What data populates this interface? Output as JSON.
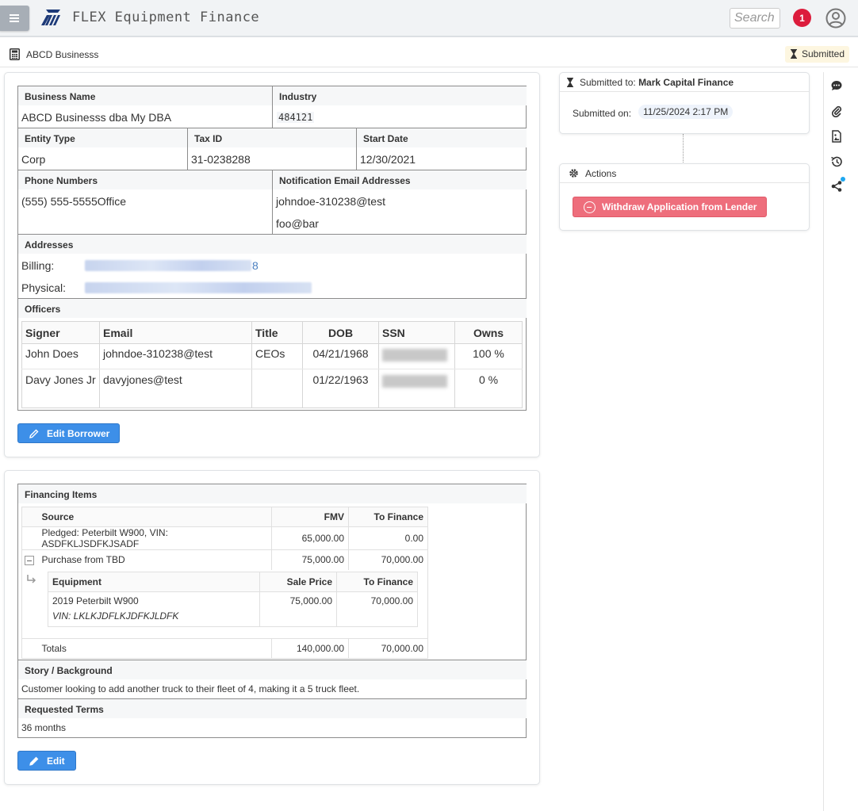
{
  "app": {
    "title": "FLEX Equipment Finance",
    "search_placeholder": "Search",
    "notification_count": "1"
  },
  "subheader": {
    "business_name": "ABCD Businesss",
    "status": "Submitted"
  },
  "borrower": {
    "business_name_label": "Business Name",
    "business_name": "ABCD Businesss dba My DBA",
    "industry_label": "Industry",
    "industry": "484121",
    "entity_type_label": "Entity Type",
    "entity_type": "Corp",
    "tax_id_label": "Tax ID",
    "tax_id": "31-0238288",
    "start_date_label": "Start Date",
    "start_date": "12/30/2021",
    "phone_label": "Phone Numbers",
    "phone": "(555) 555-5555Office",
    "email_label": "Notification Email Addresses",
    "emails": [
      "johndoe-310238@test",
      "foo@bar"
    ],
    "addresses_label": "Addresses",
    "billing_label": "Billing:",
    "billing_suffix": "8",
    "physical_label": "Physical:",
    "officers_label": "Officers",
    "officer_headers": [
      "Signer",
      "Email",
      "Title",
      "DOB",
      "SSN",
      "Owns"
    ],
    "officers": [
      {
        "signer": "John Does",
        "email": "johndoe-310238@test",
        "title": "CEOs",
        "dob": "04/21/1968",
        "owns": "100 %"
      },
      {
        "signer": "Davy Jones Jr",
        "email": "davyjones@test",
        "title": "",
        "dob": "01/22/1963",
        "owns": "0 %"
      }
    ],
    "edit_button": "Edit Borrower"
  },
  "financing": {
    "label": "Financing Items",
    "headers": [
      "Source",
      "FMV",
      "To Finance"
    ],
    "rows": [
      {
        "source": "Pledged: Peterbilt W900, VIN: ASDFKLJSDFKJSADF",
        "fmv": "65,000.00",
        "to_finance": "0.00"
      },
      {
        "source": "Purchase from TBD",
        "fmv": "75,000.00",
        "to_finance": "70,000.00"
      }
    ],
    "equipment_headers": [
      "Equipment",
      "Sale Price",
      "To Finance"
    ],
    "equipment": {
      "name": "2019 Peterbilt W900",
      "vin": "VIN: LKLKJDFLKJDFKJLDFK",
      "sale_price": "75,000.00",
      "to_finance": "70,000.00"
    },
    "totals": {
      "label": "Totals",
      "fmv": "140,000.00",
      "to_finance": "70,000.00"
    },
    "story_label": "Story / Background",
    "story": "Customer looking to add another truck to their fleet of 4, making it a 5 truck fleet.",
    "terms_label": "Requested Terms",
    "terms": "36 months",
    "edit_button": "Edit"
  },
  "submission": {
    "label": "Submitted to:",
    "lender": "Mark Capital Finance",
    "submitted_on_label": "Submitted on:",
    "submitted_on": "11/25/2024 2:17 PM"
  },
  "actions": {
    "label": "Actions",
    "withdraw_button": "Withdraw Application from Lender"
  },
  "rail_icons": [
    "comment-icon",
    "paperclip-icon",
    "document-icon",
    "history-icon",
    "share-icon"
  ],
  "colors": {
    "primary": "#3d8fe8",
    "danger": "#ee6e7c",
    "badge": "#dc1c3c",
    "status_bg": "#fdf6e0"
  }
}
